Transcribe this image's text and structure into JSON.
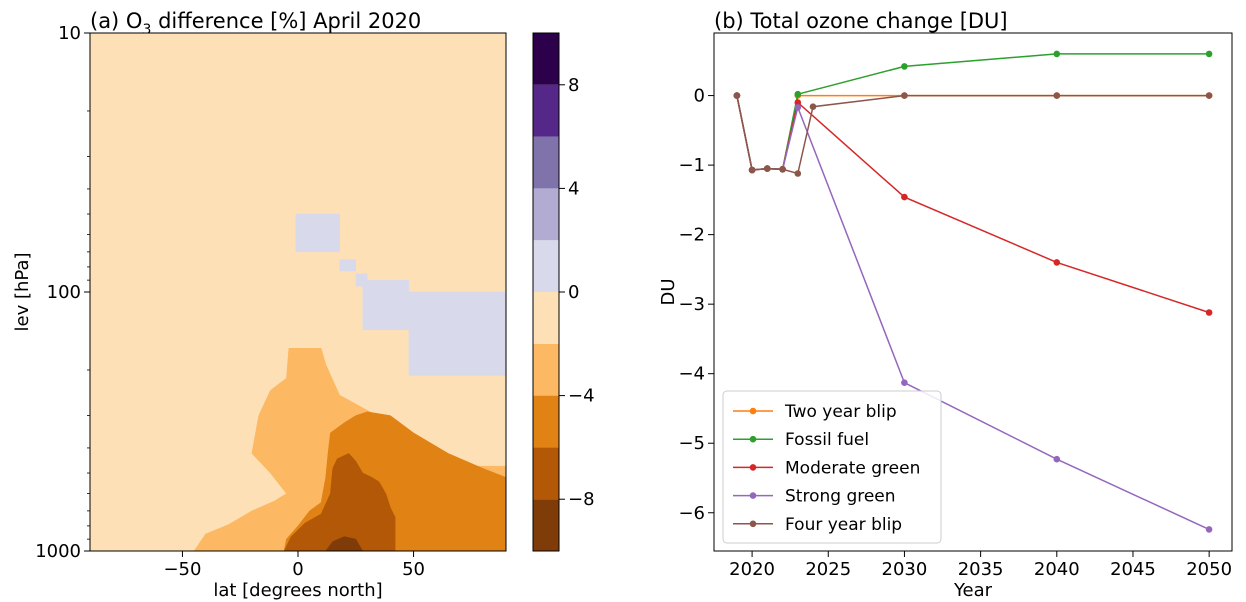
{
  "chart_data": [
    {
      "type": "heatmap",
      "title": "(a) O₃ difference [%] April 2020",
      "title_prefix": "(a) O",
      "title_sub": "3",
      "title_suffix": " difference [%] April 2020",
      "xlabel": "lat [degrees north]",
      "ylabel": "lev [hPa]",
      "xlim": [
        -90,
        90
      ],
      "ylim": [
        1000,
        10
      ],
      "yscale": "log",
      "xticks": [
        -50,
        0,
        50
      ],
      "xtick_labels": [
        "−50",
        "0",
        "50"
      ],
      "yticks": [
        10,
        100,
        1000
      ],
      "ytick_labels": [
        "10",
        "100",
        "1000"
      ],
      "grid": false,
      "colorbar": {
        "boundaries": [
          -10,
          -8,
          -6,
          -4,
          -2,
          0,
          2,
          4,
          6,
          8,
          10
        ],
        "colors": [
          "#7f3b08",
          "#b35806",
          "#e08214",
          "#fdb863",
          "#fee0b6",
          "#d8daeb",
          "#b2abd2",
          "#8073ac",
          "#542788",
          "#2d004b"
        ],
        "ticks": [
          -8,
          -4,
          0,
          4,
          8
        ],
        "tick_labels": [
          "−8",
          "−4",
          "0",
          "4",
          "8"
        ]
      },
      "background_value": -1,
      "regions": [
        {
          "value": 1,
          "polygon": [
            [
              -1,
              50
            ],
            [
              18,
              50
            ],
            [
              18,
              70
            ],
            [
              -1,
              70
            ]
          ]
        },
        {
          "value": 1,
          "polygon": [
            [
              18,
              75
            ],
            [
              25,
              75
            ],
            [
              25,
              83
            ],
            [
              18,
              83
            ]
          ]
        },
        {
          "value": 1,
          "polygon": [
            [
              25,
              85
            ],
            [
              30,
              85
            ],
            [
              30,
              95
            ],
            [
              25,
              95
            ]
          ]
        },
        {
          "value": 1,
          "polygon": [
            [
              28,
              90
            ],
            [
              48,
              90
            ],
            [
              48,
              140
            ],
            [
              28,
              140
            ]
          ]
        },
        {
          "value": 1,
          "polygon": [
            [
              48,
              100
            ],
            [
              90,
              100
            ],
            [
              90,
              210
            ],
            [
              48,
              210
            ]
          ]
        },
        {
          "value": -3,
          "polygon": [
            [
              -45,
              1000
            ],
            [
              -40,
              860
            ],
            [
              -30,
              790
            ],
            [
              -20,
              700
            ],
            [
              -10,
              640
            ],
            [
              -5,
              600
            ],
            [
              -12,
              500
            ],
            [
              -20,
              420
            ],
            [
              -17,
              300
            ],
            [
              -12,
              240
            ],
            [
              -5,
              215
            ],
            [
              -4,
              165
            ],
            [
              10,
              165
            ],
            [
              12,
              190
            ],
            [
              18,
              250
            ],
            [
              28,
              280
            ],
            [
              40,
              320
            ],
            [
              55,
              410
            ],
            [
              70,
              470
            ],
            [
              90,
              470
            ],
            [
              90,
              1000
            ]
          ]
        },
        {
          "value": -5,
          "polygon": [
            [
              -6,
              1000
            ],
            [
              -5,
              900
            ],
            [
              0,
              800
            ],
            [
              5,
              700
            ],
            [
              10,
              650
            ],
            [
              12,
              520
            ],
            [
              13,
              420
            ],
            [
              14,
              350
            ],
            [
              20,
              320
            ],
            [
              25,
              300
            ],
            [
              30,
              290
            ],
            [
              40,
              300
            ],
            [
              50,
              350
            ],
            [
              65,
              420
            ],
            [
              80,
              480
            ],
            [
              90,
              520
            ],
            [
              90,
              1000
            ]
          ]
        },
        {
          "value": -7,
          "polygon": [
            [
              -6,
              1000
            ],
            [
              -3,
              880
            ],
            [
              3,
              780
            ],
            [
              10,
              720
            ],
            [
              14,
              600
            ],
            [
              15,
              480
            ],
            [
              17,
              440
            ],
            [
              22,
              420
            ],
            [
              25,
              450
            ],
            [
              28,
              500
            ],
            [
              32,
              520
            ],
            [
              35,
              540
            ],
            [
              38,
              600
            ],
            [
              40,
              680
            ],
            [
              42,
              740
            ],
            [
              42,
              1000
            ]
          ]
        },
        {
          "value": -9,
          "polygon": [
            [
              12,
              1000
            ],
            [
              15,
              920
            ],
            [
              20,
              880
            ],
            [
              25,
              900
            ],
            [
              28,
              1000
            ]
          ]
        }
      ]
    },
    {
      "type": "line",
      "title": "(b) Total ozone change [DU]",
      "xlabel": "Year",
      "ylabel": "DU",
      "xlim": [
        2017.5,
        2051.5
      ],
      "ylim": [
        -6.55,
        0.9
      ],
      "xticks": [
        2020,
        2025,
        2030,
        2035,
        2040,
        2045,
        2050
      ],
      "yticks": [
        0,
        -1,
        -2,
        -3,
        -4,
        -5,
        -6
      ],
      "ytick_labels": [
        "0",
        "−1",
        "−2",
        "−3",
        "−4",
        "−5",
        "−6"
      ],
      "grid": false,
      "legend_position": "bottom-left",
      "series": [
        {
          "name": "Two year blip",
          "color": "#ff7f0e",
          "x": [
            2019,
            2020,
            2021,
            2022,
            2023,
            2030,
            2040,
            2050
          ],
          "y": [
            0,
            -1.07,
            -1.05,
            -1.06,
            0.0,
            0.0,
            0.0,
            0.0
          ]
        },
        {
          "name": "Fossil fuel",
          "color": "#2ca02c",
          "x": [
            2019,
            2020,
            2021,
            2022,
            2023,
            2030,
            2040,
            2050
          ],
          "y": [
            0,
            -1.07,
            -1.05,
            -1.06,
            0.02,
            0.42,
            0.6,
            0.6
          ]
        },
        {
          "name": "Moderate green",
          "color": "#d62728",
          "x": [
            2019,
            2020,
            2021,
            2022,
            2023,
            2030,
            2040,
            2050
          ],
          "y": [
            0,
            -1.07,
            -1.05,
            -1.06,
            -0.1,
            -1.46,
            -2.4,
            -3.12
          ]
        },
        {
          "name": "Strong green",
          "color": "#9467bd",
          "x": [
            2019,
            2020,
            2021,
            2022,
            2023,
            2030,
            2040,
            2050
          ],
          "y": [
            0,
            -1.07,
            -1.05,
            -1.06,
            -0.17,
            -4.13,
            -5.23,
            -6.24
          ]
        },
        {
          "name": "Four year blip",
          "color": "#8c564b",
          "x": [
            2019,
            2020,
            2021,
            2022,
            2023,
            2024,
            2030,
            2040,
            2050
          ],
          "y": [
            0,
            -1.07,
            -1.05,
            -1.06,
            -1.12,
            -0.16,
            0.0,
            0.0,
            0.0
          ]
        }
      ]
    }
  ]
}
